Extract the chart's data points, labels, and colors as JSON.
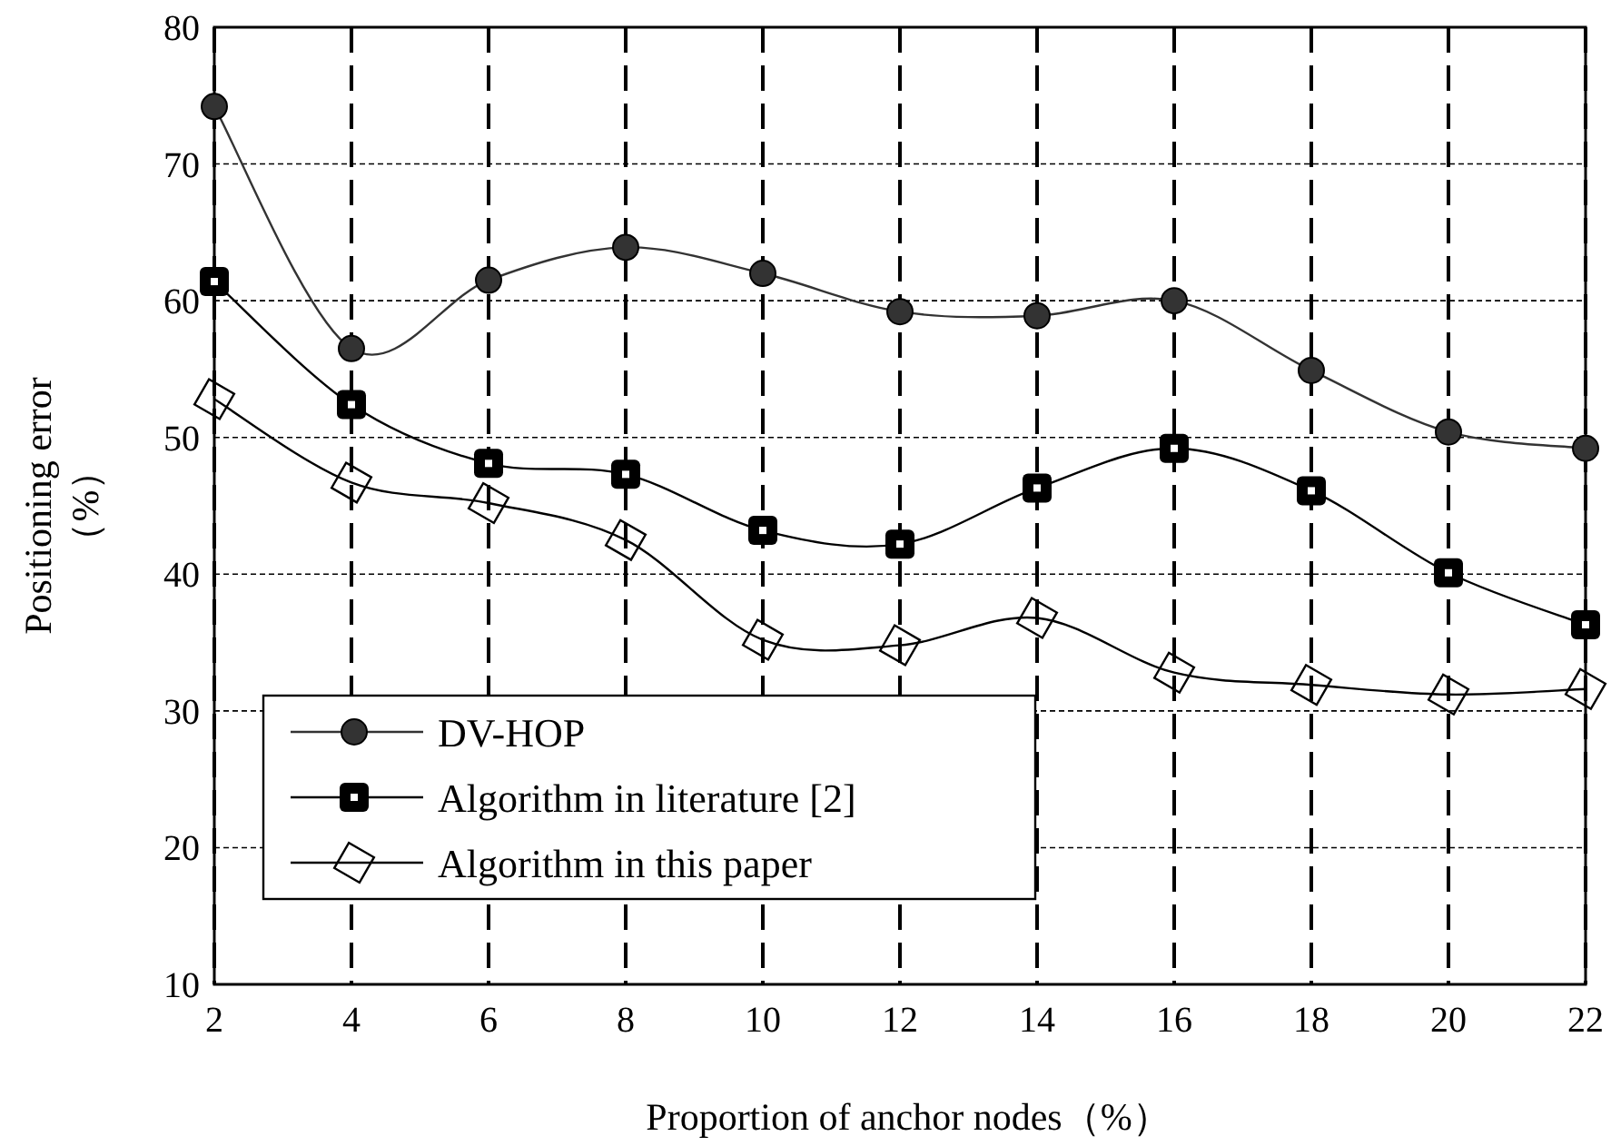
{
  "chart_data": {
    "type": "line",
    "xlabel": "Proportion of anchor nodes（%）",
    "ylabel": "Positioning error\n（%）",
    "x": [
      2,
      4,
      6,
      8,
      10,
      12,
      14,
      16,
      18,
      20,
      22
    ],
    "series": [
      {
        "name": "DV-HOP",
        "color": "#333333",
        "marker": "circle",
        "values": [
          74.2,
          56.5,
          61.5,
          63.9,
          62.0,
          59.2,
          58.9,
          60.0,
          54.9,
          50.4,
          49.2
        ]
      },
      {
        "name": "Algorithm in literature [2]",
        "color": "#000000",
        "marker": "square",
        "values": [
          61.4,
          52.4,
          48.1,
          47.3,
          43.2,
          42.2,
          46.3,
          49.2,
          46.1,
          40.1,
          36.3
        ]
      },
      {
        "name": "Algorithm in this paper",
        "color": "#000000",
        "marker": "diamond",
        "values": [
          52.8,
          46.7,
          45.2,
          42.5,
          35.2,
          34.8,
          36.8,
          32.8,
          31.9,
          31.2,
          31.6
        ]
      }
    ],
    "xlim": [
      2,
      22
    ],
    "xticks": [
      2,
      4,
      6,
      8,
      10,
      12,
      14,
      16,
      18,
      20,
      22
    ],
    "ylim": [
      10,
      80
    ],
    "yticks": [
      10,
      20,
      30,
      40,
      50,
      60,
      70,
      80
    ],
    "grid": true,
    "legend": "bottom left",
    "line_style": "solid"
  }
}
